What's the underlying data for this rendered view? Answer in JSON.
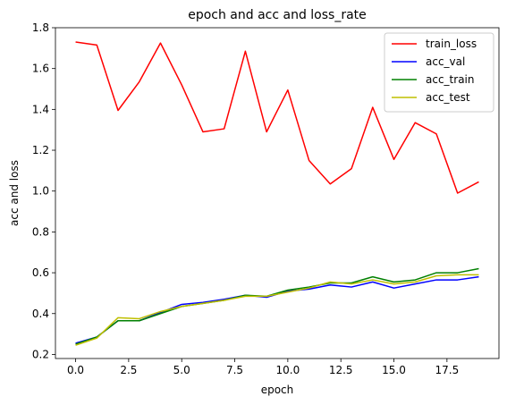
{
  "chart_data": {
    "type": "line",
    "title": "epoch and acc and loss_rate",
    "xlabel": "epoch",
    "ylabel": "acc and loss",
    "xlim": [
      -0.95,
      19.95
    ],
    "ylim": [
      0.18,
      1.8
    ],
    "xticks": [
      0.0,
      2.5,
      5.0,
      7.5,
      10.0,
      12.5,
      15.0,
      17.5
    ],
    "xtick_labels": [
      "0.0",
      "2.5",
      "5.0",
      "7.5",
      "10.0",
      "12.5",
      "15.0",
      "17.5"
    ],
    "yticks": [
      0.2,
      0.4,
      0.6,
      0.8,
      1.0,
      1.2,
      1.4,
      1.6,
      1.8
    ],
    "ytick_labels": [
      "0.2",
      "0.4",
      "0.6",
      "0.8",
      "1.0",
      "1.2",
      "1.4",
      "1.6",
      "1.8"
    ],
    "grid": false,
    "legend_position": "top-right",
    "x": [
      0,
      1,
      2,
      3,
      4,
      5,
      6,
      7,
      8,
      9,
      10,
      11,
      12,
      13,
      14,
      15,
      16,
      17,
      18,
      19
    ],
    "series": [
      {
        "name": "train_loss",
        "color": "#ff0000",
        "values": [
          1.73,
          1.715,
          1.395,
          1.535,
          1.725,
          1.52,
          1.29,
          1.305,
          1.685,
          1.29,
          1.495,
          1.15,
          1.035,
          1.11,
          1.41,
          1.155,
          1.335,
          1.28,
          0.99,
          1.045
        ]
      },
      {
        "name": "acc_val",
        "color": "#0000ff",
        "values": [
          0.255,
          0.285,
          0.365,
          0.365,
          0.405,
          0.445,
          0.455,
          0.47,
          0.49,
          0.48,
          0.51,
          0.52,
          0.54,
          0.53,
          0.555,
          0.525,
          0.545,
          0.565,
          0.565,
          0.58
        ]
      },
      {
        "name": "acc_train",
        "color": "#008000",
        "values": [
          0.25,
          0.285,
          0.365,
          0.365,
          0.4,
          0.435,
          0.45,
          0.465,
          0.49,
          0.485,
          0.515,
          0.53,
          0.55,
          0.55,
          0.58,
          0.555,
          0.565,
          0.6,
          0.6,
          0.62
        ]
      },
      {
        "name": "acc_test",
        "color": "#bfbf00",
        "values": [
          0.245,
          0.28,
          0.38,
          0.375,
          0.41,
          0.435,
          0.45,
          0.465,
          0.485,
          0.485,
          0.505,
          0.525,
          0.555,
          0.545,
          0.565,
          0.545,
          0.555,
          0.585,
          0.59,
          0.59
        ]
      }
    ]
  }
}
